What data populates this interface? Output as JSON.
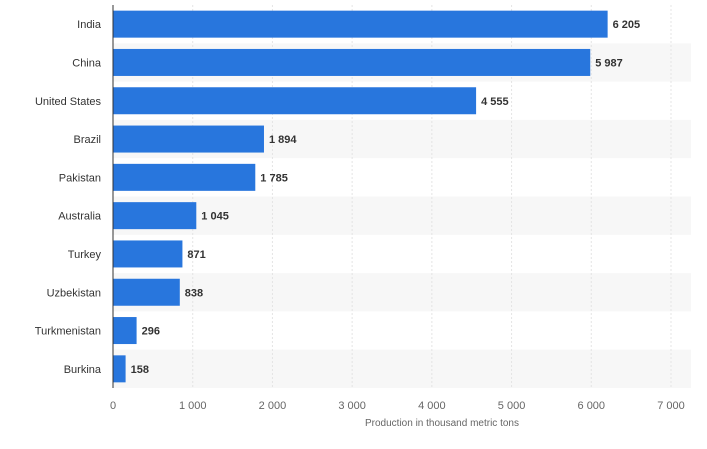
{
  "chart_data": {
    "type": "bar",
    "orientation": "horizontal",
    "categories": [
      "India",
      "China",
      "United States",
      "Brazil",
      "Pakistan",
      "Australia",
      "Turkey",
      "Uzbekistan",
      "Turkmenistan",
      "Burkina"
    ],
    "values": [
      6205,
      5987,
      4555,
      1894,
      1785,
      1045,
      871,
      838,
      296,
      158
    ],
    "value_labels": [
      "6 205",
      "5 987",
      "4 555",
      "1 894",
      "1 785",
      "1 045",
      "871",
      "838",
      "296",
      "158"
    ],
    "x_ticks": [
      0,
      1000,
      2000,
      3000,
      4000,
      5000,
      6000,
      7000
    ],
    "x_tick_labels": [
      "0",
      "1 000",
      "2 000",
      "3 000",
      "4 000",
      "5 000",
      "6 000",
      "7 000"
    ],
    "xlim": [
      0,
      7000
    ],
    "xlabel": "Production in thousand metric tons",
    "ylabel": "",
    "title": "",
    "grid": true,
    "bar_color": "#2876dd"
  }
}
